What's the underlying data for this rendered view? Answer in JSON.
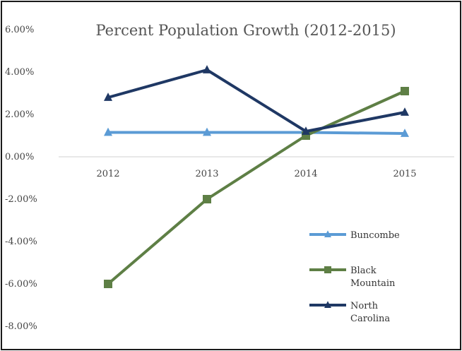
{
  "chart_data": {
    "type": "line",
    "title": "Percent Population Growth (2012-2015)",
    "xlabel": "",
    "ylabel": "",
    "categories": [
      "2012",
      "2013",
      "2014",
      "2015"
    ],
    "ylim": [
      -0.08,
      0.06
    ],
    "yticks": [
      {
        "value": 0.06,
        "label": "6.00%"
      },
      {
        "value": 0.04,
        "label": "4.00%"
      },
      {
        "value": 0.02,
        "label": "2.00%"
      },
      {
        "value": 0.0,
        "label": "0.00%"
      },
      {
        "value": -0.02,
        "label": "-2.00%"
      },
      {
        "value": -0.04,
        "label": "-4.00%"
      },
      {
        "value": -0.06,
        "label": "-6.00%"
      },
      {
        "value": -0.08,
        "label": "-8.00%"
      }
    ],
    "grid": false,
    "legend_position": "right",
    "series": [
      {
        "name": "Buncombe",
        "legend_lines": [
          "Buncombe"
        ],
        "color": "#5b9bd5",
        "marker": "triangle",
        "values": [
          0.0115,
          0.0115,
          0.0115,
          0.011
        ]
      },
      {
        "name": "Black Mountain",
        "legend_lines": [
          "Black",
          "Mountain"
        ],
        "color": "#5e7f45",
        "marker": "square",
        "values": [
          -0.06,
          -0.02,
          0.01,
          0.031
        ]
      },
      {
        "name": "North Carolina",
        "legend_lines": [
          "North",
          "Carolina"
        ],
        "color": "#1f3864",
        "marker": "triangle",
        "values": [
          0.028,
          0.041,
          0.012,
          0.021
        ]
      }
    ]
  }
}
